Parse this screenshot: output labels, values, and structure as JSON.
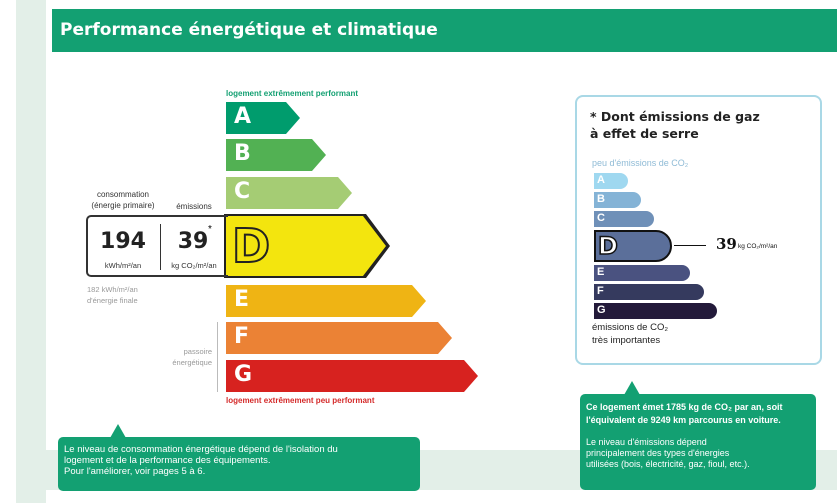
{
  "header": {
    "title": "Performance énergétique et climatique"
  },
  "energy": {
    "top_label": "logement extrêmement performant",
    "bottom_label": "logement extrêmement peu performant",
    "classes": [
      {
        "letter": "A",
        "color": "#009c6d"
      },
      {
        "letter": "B",
        "color": "#52b153"
      },
      {
        "letter": "C",
        "color": "#a5cc74"
      },
      {
        "letter": "D",
        "color": "#f3e50e"
      },
      {
        "letter": "E",
        "color": "#efb414"
      },
      {
        "letter": "F",
        "color": "#eb8235"
      },
      {
        "letter": "G",
        "color": "#d7221f"
      }
    ],
    "current_class": "D",
    "consumption_label_1": "consommation",
    "consumption_label_2": "(énergie primaire)",
    "emissions_label": "émissions",
    "consumption_value": "194",
    "consumption_unit": "kWh/m²/an",
    "emissions_value": "39",
    "emissions_asterisk": "*",
    "emissions_unit": "kg CO₂/m²/an",
    "final_energy_1": "182 kWh/m²/an",
    "final_energy_2": "d'énergie finale",
    "passoire_1": "passoire",
    "passoire_2": "énergétique"
  },
  "ghg": {
    "title_1": "* Dont émissions de gaz",
    "title_2": "à effet de serre",
    "top_label": "peu d'émissions de CO₂",
    "bottom_label_1": "émissions de CO₂",
    "bottom_label_2": "très importantes",
    "classes": [
      {
        "letter": "A",
        "color": "#9fd8f0"
      },
      {
        "letter": "B",
        "color": "#84b3d6"
      },
      {
        "letter": "C",
        "color": "#6f90b8"
      },
      {
        "letter": "D",
        "color": "#5b6f9a"
      },
      {
        "letter": "E",
        "color": "#4a5280"
      },
      {
        "letter": "F",
        "color": "#353a5e"
      },
      {
        "letter": "G",
        "color": "#231a3a"
      }
    ],
    "current_class": "D",
    "value": "39",
    "unit": "kg CO₂/m²/an"
  },
  "callouts": {
    "left": [
      "Le niveau de consommation énergétique dépend de l'isolation du",
      "logement et de la performance des équipements.",
      "Pour l'améliorer, voir pages 5 à 6."
    ],
    "right_bold": [
      "Ce logement émet 1785 kg de CO₂ par an, soit",
      "l'équivalent de 9249 km parcourus en voiture."
    ],
    "right": [
      "Le niveau d'émissions dépend",
      "principalement des types d'énergies",
      "utilisées (bois, électricité, gaz, fioul, etc.)."
    ]
  }
}
